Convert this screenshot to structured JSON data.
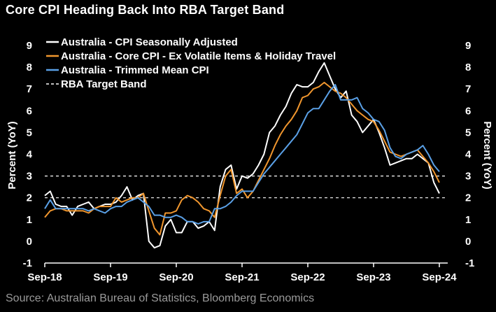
{
  "title": "Core CPI Heading Back Into RBA Target Band",
  "source": "Source: Australian Bureau of Statistics, Bloomberg Economics",
  "chart_data": {
    "type": "line",
    "ylabel_left": "Percent (YoY)",
    "ylabel_right": "Percent (YoY)",
    "ylim": [
      -1,
      9
    ],
    "yticks": [
      -1,
      0,
      1,
      2,
      3,
      4,
      5,
      6,
      7,
      8,
      9
    ],
    "xticks": [
      "Sep-18",
      "Sep-19",
      "Sep-20",
      "Sep-21",
      "Sep-22",
      "Sep-23",
      "Sep-24"
    ],
    "x_dates": [
      "2018-09",
      "2018-10",
      "2018-11",
      "2018-12",
      "2019-01",
      "2019-02",
      "2019-03",
      "2019-04",
      "2019-05",
      "2019-06",
      "2019-07",
      "2019-08",
      "2019-09",
      "2019-10",
      "2019-11",
      "2019-12",
      "2020-01",
      "2020-02",
      "2020-03",
      "2020-04",
      "2020-05",
      "2020-06",
      "2020-07",
      "2020-08",
      "2020-09",
      "2020-10",
      "2020-11",
      "2020-12",
      "2021-01",
      "2021-02",
      "2021-03",
      "2021-04",
      "2021-05",
      "2021-06",
      "2021-07",
      "2021-08",
      "2021-09",
      "2021-10",
      "2021-11",
      "2021-12",
      "2022-01",
      "2022-02",
      "2022-03",
      "2022-04",
      "2022-05",
      "2022-06",
      "2022-07",
      "2022-08",
      "2022-09",
      "2022-10",
      "2022-11",
      "2022-12",
      "2023-01",
      "2023-02",
      "2023-03",
      "2023-04",
      "2023-05",
      "2023-06",
      "2023-07",
      "2023-08",
      "2023-09",
      "2023-10",
      "2023-11",
      "2023-12",
      "2024-01",
      "2024-02",
      "2024-03",
      "2024-04",
      "2024-05",
      "2024-06",
      "2024-07",
      "2024-08",
      "2024-09"
    ],
    "legend_position": "top-left",
    "series": [
      {
        "name": "Australia - CPI Seasonally Adjusted",
        "color": "#ffffff",
        "style": "solid",
        "values": [
          2.1,
          2.3,
          1.7,
          1.6,
          1.6,
          1.2,
          1.6,
          1.7,
          1.8,
          1.5,
          1.6,
          1.7,
          1.7,
          1.8,
          2.1,
          2.5,
          1.9,
          2.1,
          2.2,
          0.0,
          -0.3,
          -0.2,
          0.7,
          1.0,
          0.4,
          0.4,
          0.9,
          0.9,
          0.6,
          0.7,
          0.9,
          0.5,
          2.5,
          3.3,
          3.5,
          2.4,
          3.0,
          2.9,
          3.1,
          3.5,
          4.0,
          5.0,
          5.3,
          5.8,
          6.2,
          6.8,
          7.2,
          7.1,
          7.1,
          7.3,
          7.8,
          8.2,
          7.6,
          7.0,
          6.6,
          6.9,
          5.8,
          5.5,
          5.0,
          5.3,
          5.6,
          5.0,
          4.3,
          3.5,
          3.6,
          3.7,
          3.8,
          3.8,
          4.0,
          3.8,
          3.6,
          2.7,
          2.2
        ]
      },
      {
        "name": "Australia - Core CPI - Ex Volatile Items & Holiday Travel",
        "color": "#f0962e",
        "style": "solid",
        "values": [
          1.1,
          1.4,
          1.5,
          1.5,
          1.4,
          1.4,
          1.4,
          1.4,
          1.3,
          1.5,
          1.6,
          1.6,
          1.6,
          2.0,
          1.8,
          1.9,
          2.0,
          2.0,
          2.2,
          1.4,
          0.6,
          0.3,
          1.3,
          1.3,
          1.4,
          1.9,
          2.1,
          2.0,
          1.8,
          1.5,
          1.4,
          1.1,
          2.1,
          3.0,
          3.3,
          2.2,
          2.4,
          2.0,
          2.3,
          2.8,
          3.3,
          3.8,
          4.4,
          4.9,
          5.3,
          5.6,
          6.0,
          6.6,
          6.7,
          7.0,
          7.1,
          7.3,
          7.1,
          6.9,
          6.8,
          6.6,
          6.3,
          6.0,
          5.8,
          5.6,
          5.5,
          5.1,
          4.6,
          4.1,
          4.0,
          3.9,
          4.0,
          4.1,
          4.2,
          3.9,
          3.6,
          3.2,
          2.7
        ]
      },
      {
        "name": "Australia - Trimmed Mean CPI",
        "color": "#5aa0e6",
        "style": "solid",
        "values": [
          1.5,
          1.9,
          1.5,
          1.5,
          1.5,
          1.5,
          1.5,
          1.5,
          1.4,
          1.5,
          1.4,
          1.3,
          1.5,
          1.6,
          1.6,
          1.8,
          1.9,
          2.0,
          1.8,
          1.6,
          1.2,
          1.2,
          1.1,
          1.1,
          1.2,
          1.1,
          0.9,
          0.9,
          0.8,
          0.9,
          0.9,
          1.5,
          1.5,
          1.6,
          1.8,
          2.1,
          2.3,
          2.3,
          2.3,
          2.7,
          3.1,
          3.4,
          3.7,
          4.0,
          4.3,
          4.6,
          4.9,
          5.4,
          5.9,
          6.1,
          6.1,
          6.5,
          6.9,
          7.2,
          6.5,
          6.5,
          6.5,
          6.6,
          6.1,
          5.9,
          5.6,
          5.5,
          5.1,
          4.3,
          3.9,
          3.8,
          4.0,
          4.1,
          4.2,
          4.4,
          4.0,
          3.5,
          3.2
        ]
      },
      {
        "name": "RBA Target Band",
        "color": "#ffffff",
        "style": "dashed",
        "values": [
          3,
          3
        ],
        "band": [
          2,
          3
        ]
      }
    ]
  }
}
